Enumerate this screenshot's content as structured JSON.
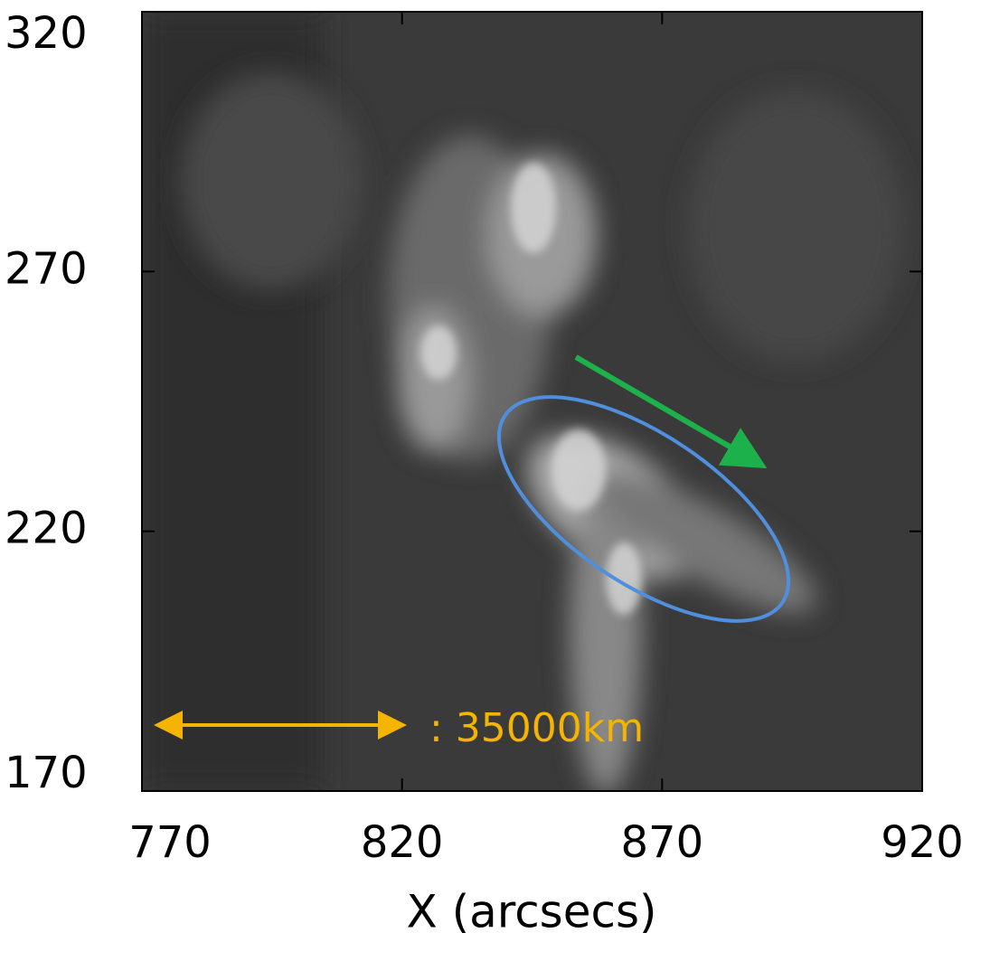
{
  "chart_data": {
    "type": "image",
    "xlabel": "X (arcsecs)",
    "xlim": [
      770,
      920
    ],
    "xticks": [
      770,
      820,
      870,
      920
    ],
    "ylim": [
      170,
      320
    ],
    "yticks": [
      170,
      220,
      270,
      320
    ],
    "annotation": ": 35000km"
  }
}
